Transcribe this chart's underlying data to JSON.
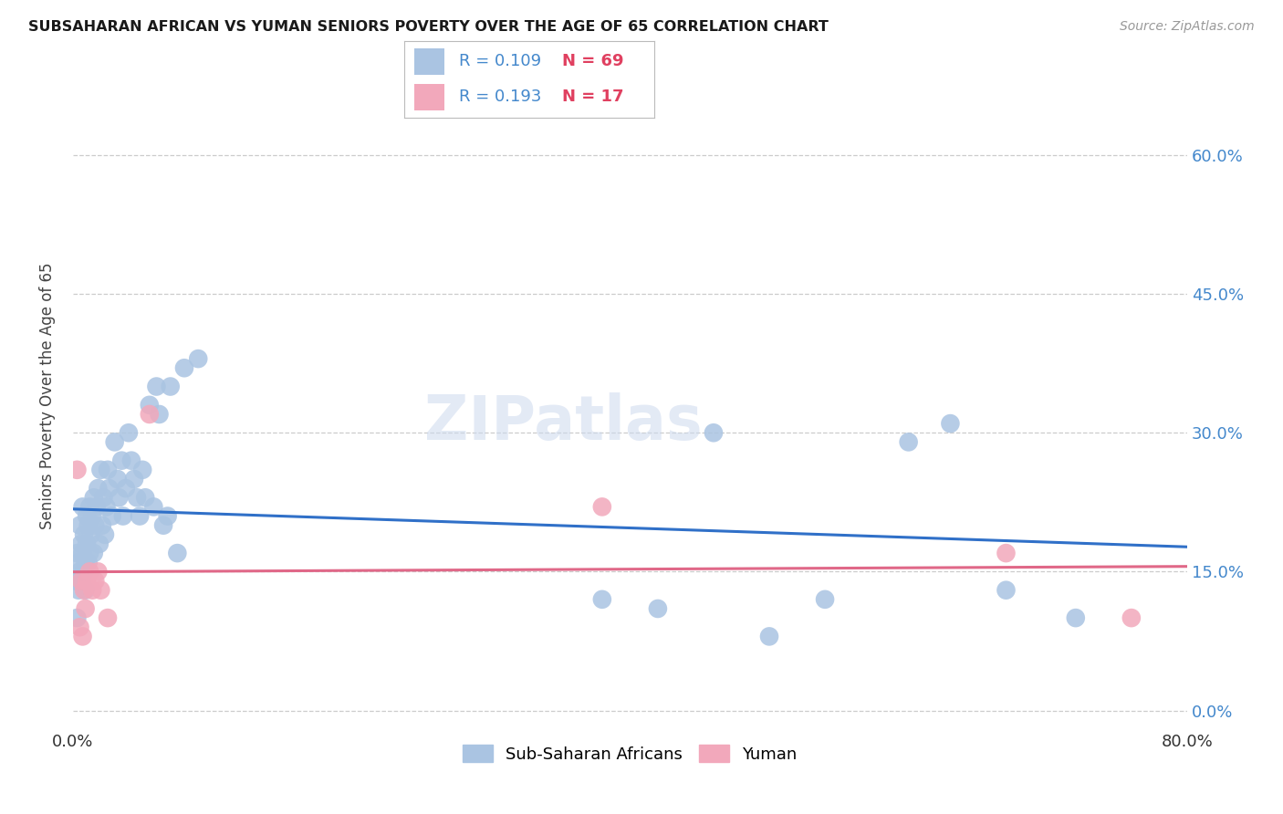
{
  "title": "SUBSAHARAN AFRICAN VS YUMAN SENIORS POVERTY OVER THE AGE OF 65 CORRELATION CHART",
  "source": "Source: ZipAtlas.com",
  "ylabel": "Seniors Poverty Over the Age of 65",
  "xlim": [
    0.0,
    0.8
  ],
  "ylim": [
    -0.02,
    0.7
  ],
  "yticks": [
    0.0,
    0.15,
    0.3,
    0.45,
    0.6
  ],
  "ytick_labels": [
    "0.0%",
    "15.0%",
    "30.0%",
    "45.0%",
    "60.0%"
  ],
  "xticks": [
    0.0,
    0.1,
    0.2,
    0.3,
    0.4,
    0.5,
    0.6,
    0.7,
    0.8
  ],
  "xtick_labels": [
    "0.0%",
    "",
    "",
    "",
    "",
    "",
    "",
    "",
    "80.0%"
  ],
  "blue_R": 0.109,
  "blue_N": 69,
  "pink_R": 0.193,
  "pink_N": 17,
  "blue_color": "#aac4e2",
  "pink_color": "#f2a8bb",
  "blue_line_color": "#3070c8",
  "pink_line_color": "#e06888",
  "tick_color": "#4488cc",
  "watermark": "ZIPatlas",
  "blue_scatter_x": [
    0.002,
    0.003,
    0.003,
    0.004,
    0.004,
    0.005,
    0.005,
    0.006,
    0.006,
    0.007,
    0.007,
    0.008,
    0.008,
    0.009,
    0.009,
    0.01,
    0.01,
    0.011,
    0.011,
    0.012,
    0.012,
    0.013,
    0.014,
    0.015,
    0.015,
    0.016,
    0.017,
    0.018,
    0.019,
    0.02,
    0.021,
    0.022,
    0.023,
    0.024,
    0.025,
    0.026,
    0.028,
    0.03,
    0.032,
    0.033,
    0.035,
    0.036,
    0.038,
    0.04,
    0.042,
    0.044,
    0.046,
    0.048,
    0.05,
    0.052,
    0.055,
    0.058,
    0.06,
    0.062,
    0.065,
    0.068,
    0.07,
    0.075,
    0.08,
    0.09,
    0.38,
    0.42,
    0.46,
    0.5,
    0.54,
    0.6,
    0.63,
    0.67,
    0.72
  ],
  "blue_scatter_y": [
    0.14,
    0.1,
    0.17,
    0.13,
    0.16,
    0.15,
    0.2,
    0.14,
    0.18,
    0.17,
    0.22,
    0.15,
    0.19,
    0.16,
    0.13,
    0.21,
    0.18,
    0.2,
    0.16,
    0.22,
    0.17,
    0.19,
    0.21,
    0.23,
    0.17,
    0.2,
    0.22,
    0.24,
    0.18,
    0.26,
    0.2,
    0.23,
    0.19,
    0.22,
    0.26,
    0.24,
    0.21,
    0.29,
    0.25,
    0.23,
    0.27,
    0.21,
    0.24,
    0.3,
    0.27,
    0.25,
    0.23,
    0.21,
    0.26,
    0.23,
    0.33,
    0.22,
    0.35,
    0.32,
    0.2,
    0.21,
    0.35,
    0.17,
    0.37,
    0.38,
    0.12,
    0.11,
    0.3,
    0.08,
    0.12,
    0.29,
    0.31,
    0.13,
    0.1
  ],
  "pink_scatter_x": [
    0.003,
    0.005,
    0.006,
    0.007,
    0.008,
    0.009,
    0.01,
    0.012,
    0.014,
    0.016,
    0.018,
    0.02,
    0.025,
    0.055,
    0.38,
    0.67,
    0.76
  ],
  "pink_scatter_y": [
    0.26,
    0.09,
    0.14,
    0.08,
    0.13,
    0.11,
    0.14,
    0.15,
    0.13,
    0.14,
    0.15,
    0.13,
    0.1,
    0.32,
    0.22,
    0.17,
    0.1
  ]
}
